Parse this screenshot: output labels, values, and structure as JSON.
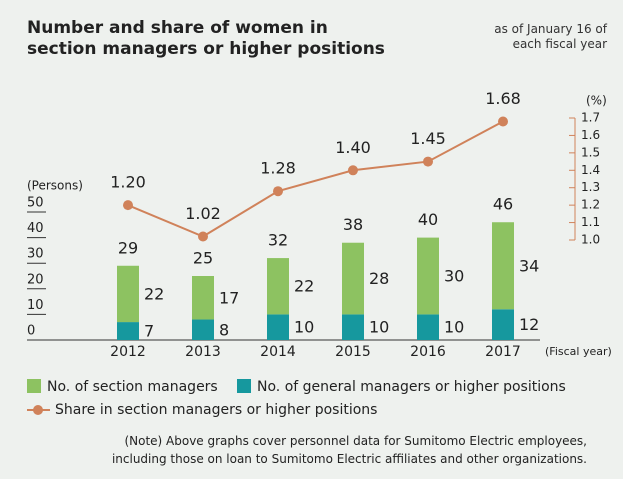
{
  "chart_data": {
    "type": "bar_line",
    "title": "Number and share of women in\nsection managers or higher positions",
    "subtitle": "as of January 16 of\neach fiscal year",
    "note": "(Note) Above graphs cover personnel data for Sumitomo Electric employees,\nincluding those on loan to Sumitomo Electric affiliates and other organizations.",
    "y_label": "(Persons)",
    "y2_label": "(%)",
    "x_label": "(Fiscal year)",
    "categories": [
      "2012",
      "2013",
      "2014",
      "2015",
      "2016",
      "2017"
    ],
    "series": [
      {
        "name": "No. of section managers",
        "type": "bar",
        "color": "#8dc261",
        "values": [
          22,
          17,
          22,
          28,
          30,
          34
        ]
      },
      {
        "name": "No. of general managers or higher positions",
        "type": "bar",
        "color": "#16989e",
        "values": [
          7,
          8,
          10,
          10,
          10,
          12
        ]
      },
      {
        "name": "Share in section managers or higher positions",
        "type": "line",
        "axis": "y2",
        "color": "#d0825a",
        "values": [
          1.2,
          1.02,
          1.28,
          1.4,
          1.45,
          1.68
        ],
        "value_labels": [
          "1.20",
          "1.02",
          "1.28",
          "1.40",
          "1.45",
          "1.68"
        ]
      }
    ],
    "totals": [
      29,
      25,
      32,
      38,
      40,
      46
    ],
    "ylim": [
      0,
      50
    ],
    "yticks": [
      0,
      10,
      20,
      30,
      40,
      50
    ],
    "y2lim": [
      1,
      1.7
    ],
    "y2ticks": [
      {
        "value": 1,
        "label": "1.0"
      },
      1.1,
      1.2,
      1.3,
      1.4,
      1.5,
      1.6,
      1.7
    ]
  }
}
